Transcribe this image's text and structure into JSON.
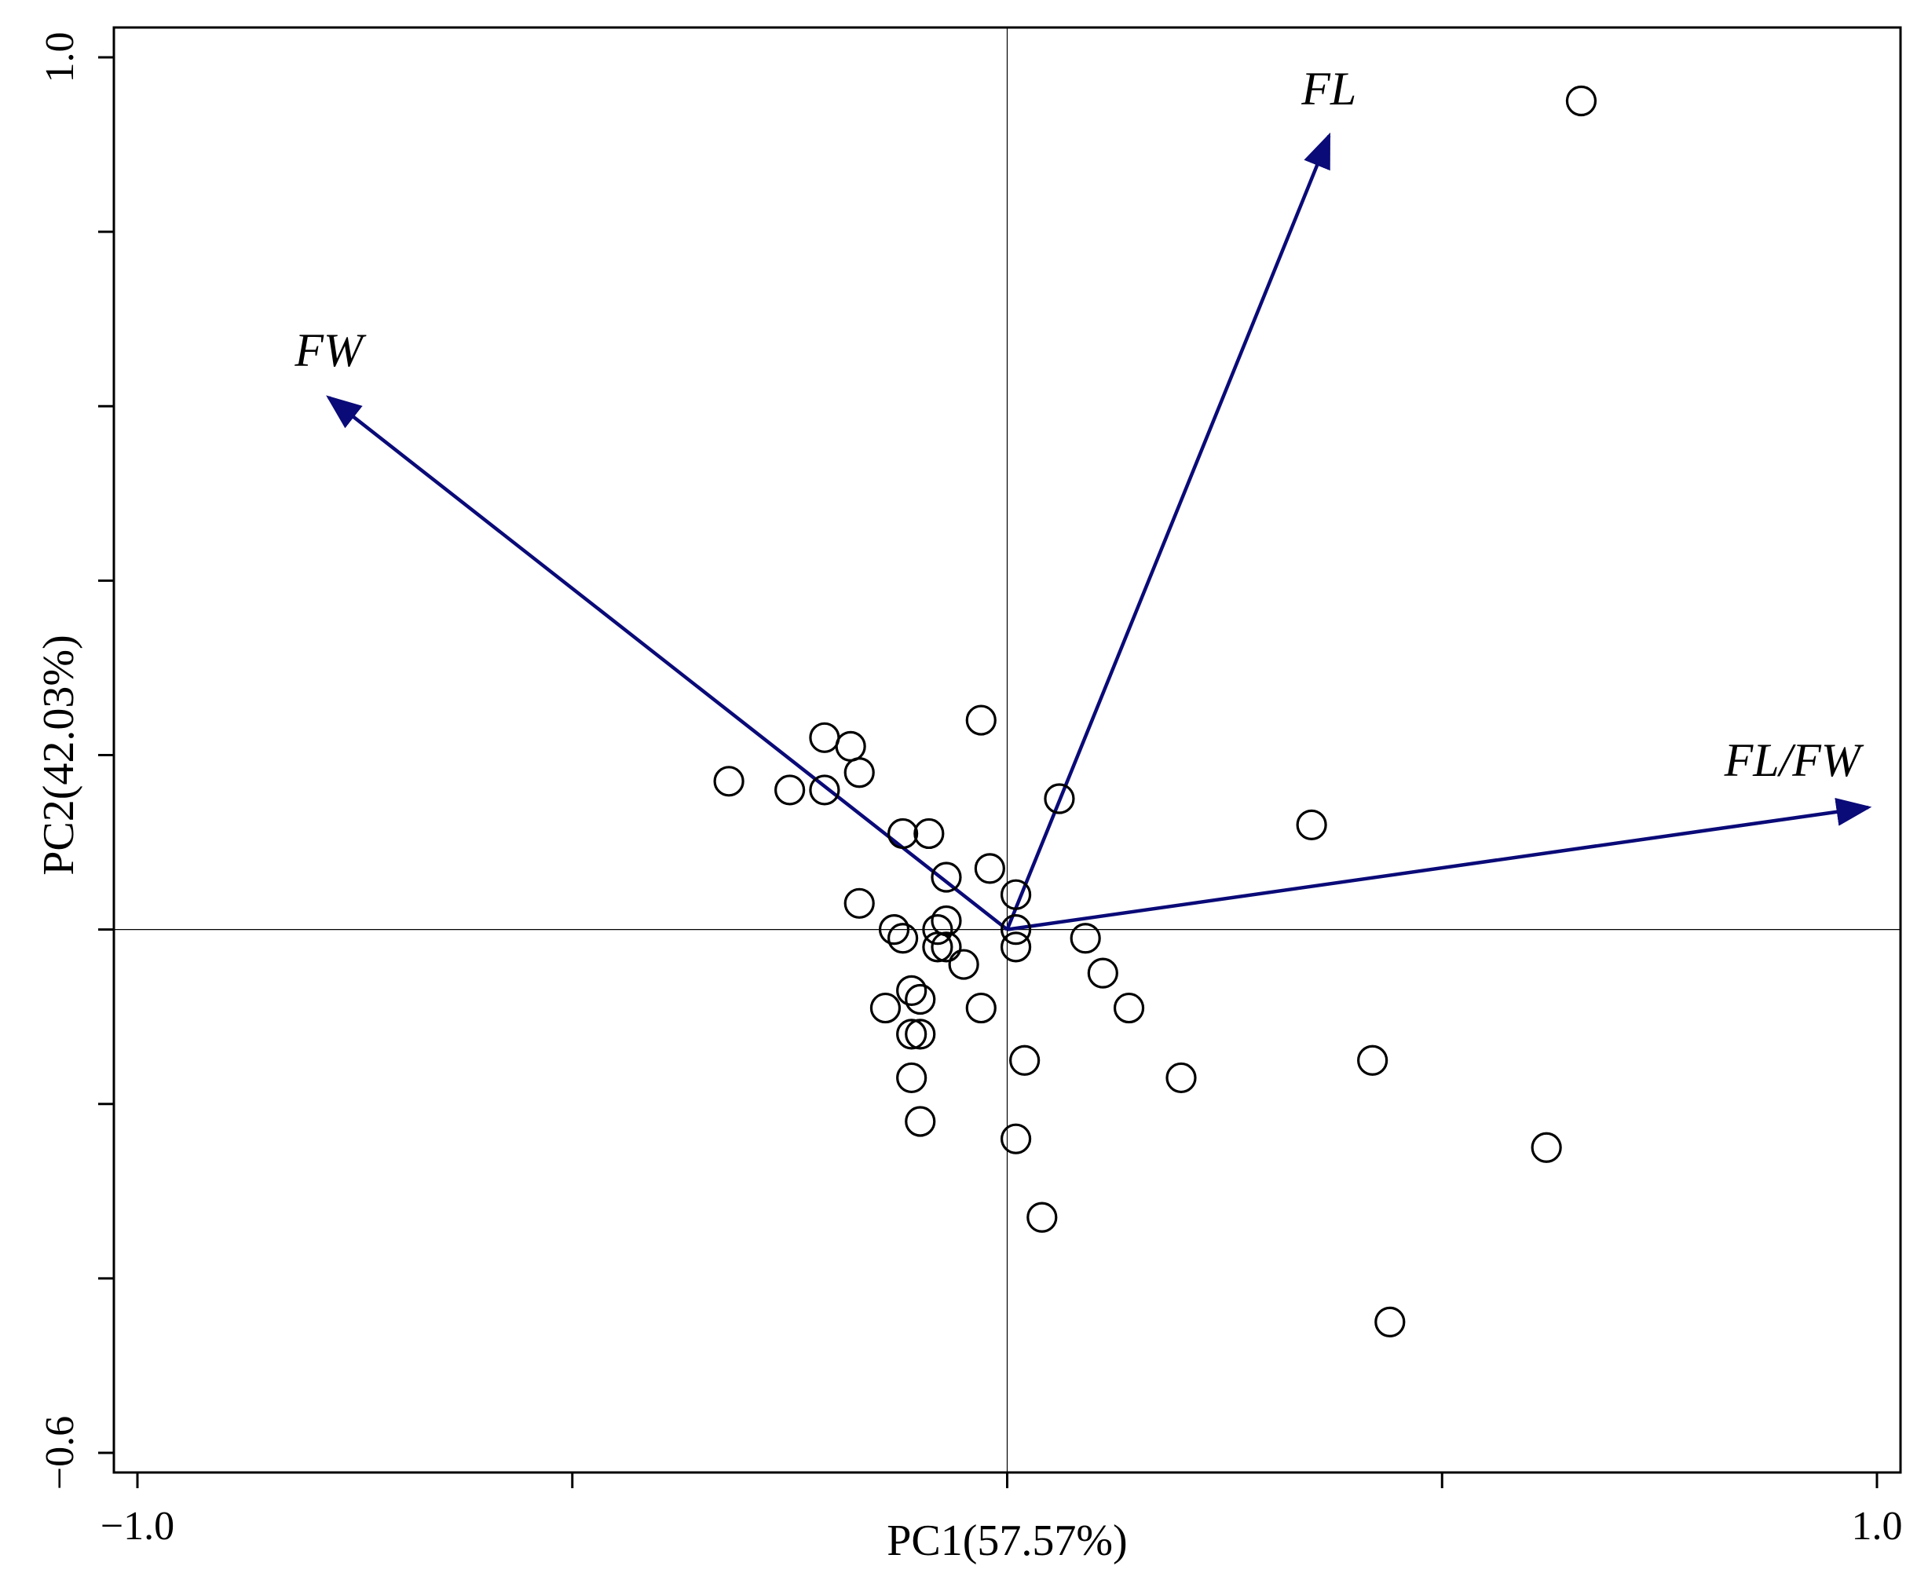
{
  "chart_data": {
    "type": "scatter",
    "subtype": "pca-biplot",
    "title": "",
    "xlabel": "PC1(57.57%)",
    "ylabel": "PC2(42.03%)",
    "xlim": [
      -1.0,
      1.0
    ],
    "ylim": [
      -0.6,
      1.0
    ],
    "x_tick_values": [
      -1.0,
      -0.5,
      0.0,
      0.5,
      1.0
    ],
    "x_tick_labels": [
      "−1.0",
      "",
      "",
      "",
      "1.0"
    ],
    "y_tick_values": [
      -0.6,
      -0.4,
      -0.2,
      0.0,
      0.2,
      0.4,
      0.6,
      0.8,
      1.0
    ],
    "y_tick_labels": [
      "−0.6",
      "",
      "",
      "",
      "",
      "",
      "",
      "",
      "1.0"
    ],
    "reference_lines": {
      "x": 0,
      "y": 0
    },
    "grid": false,
    "legend": "none",
    "vector_color": "#0a0a78",
    "point_style": "open-circle",
    "vectors": [
      {
        "label": "FL",
        "x": 0.37,
        "y": 0.91
      },
      {
        "label": "FW",
        "x": -0.78,
        "y": 0.61
      },
      {
        "label": "FL/FW",
        "x": 0.99,
        "y": 0.14
      }
    ],
    "points": [
      [
        0.66,
        0.95
      ],
      [
        -0.03,
        0.24
      ],
      [
        -0.21,
        0.22
      ],
      [
        -0.18,
        0.21
      ],
      [
        -0.17,
        0.18
      ],
      [
        -0.32,
        0.17
      ],
      [
        -0.25,
        0.16
      ],
      [
        -0.21,
        0.16
      ],
      [
        0.06,
        0.15
      ],
      [
        0.35,
        0.12
      ],
      [
        -0.12,
        0.11
      ],
      [
        -0.09,
        0.11
      ],
      [
        -0.02,
        0.07
      ],
      [
        -0.07,
        0.06
      ],
      [
        0.01,
        0.04
      ],
      [
        -0.17,
        0.03
      ],
      [
        -0.07,
        0.01
      ],
      [
        0.01,
        0.0
      ],
      [
        -0.13,
        0.0
      ],
      [
        -0.12,
        -0.01
      ],
      [
        -0.08,
        0.0
      ],
      [
        0.09,
        -0.01
      ],
      [
        -0.08,
        -0.02
      ],
      [
        -0.07,
        -0.02
      ],
      [
        0.01,
        -0.02
      ],
      [
        -0.05,
        -0.04
      ],
      [
        0.11,
        -0.05
      ],
      [
        -0.11,
        -0.07
      ],
      [
        -0.1,
        -0.08
      ],
      [
        -0.14,
        -0.09
      ],
      [
        0.14,
        -0.09
      ],
      [
        -0.03,
        -0.09
      ],
      [
        -0.11,
        -0.12
      ],
      [
        -0.1,
        -0.12
      ],
      [
        0.02,
        -0.15
      ],
      [
        0.42,
        -0.15
      ],
      [
        0.2,
        -0.17
      ],
      [
        -0.11,
        -0.17
      ],
      [
        -0.1,
        -0.22
      ],
      [
        0.01,
        -0.24
      ],
      [
        0.62,
        -0.25
      ],
      [
        0.04,
        -0.33
      ],
      [
        0.44,
        -0.45
      ]
    ]
  }
}
